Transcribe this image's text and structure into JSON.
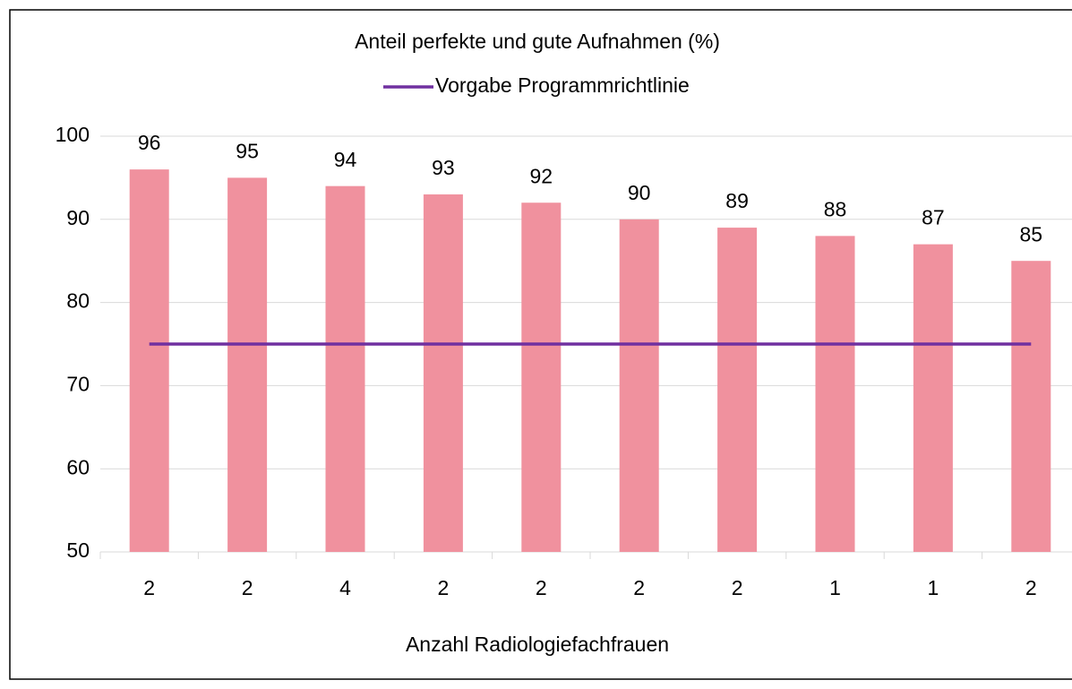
{
  "chart_data": {
    "type": "bar",
    "title": "Anteil perfekte und gute Aufnahmen (%)",
    "x_label": "Anzahl Radiologiefachfrauen",
    "categories": [
      "2",
      "2",
      "4",
      "2",
      "2",
      "2",
      "2",
      "1",
      "1",
      "2"
    ],
    "series": [
      {
        "type": "bar",
        "color": "#f0919e",
        "values": [
          96,
          95,
          94,
          93,
          92,
          90,
          89,
          88,
          87,
          85
        ]
      },
      {
        "type": "line",
        "name": "Vorgabe Programmrichtlinie",
        "color": "#7030a0",
        "values": [
          75,
          75,
          75,
          75,
          75,
          75,
          75,
          75,
          75,
          75
        ]
      }
    ],
    "ylim": [
      50,
      100
    ],
    "yticks": [
      50,
      60,
      70,
      80,
      90,
      100
    ],
    "grid": true,
    "legend": "top"
  }
}
